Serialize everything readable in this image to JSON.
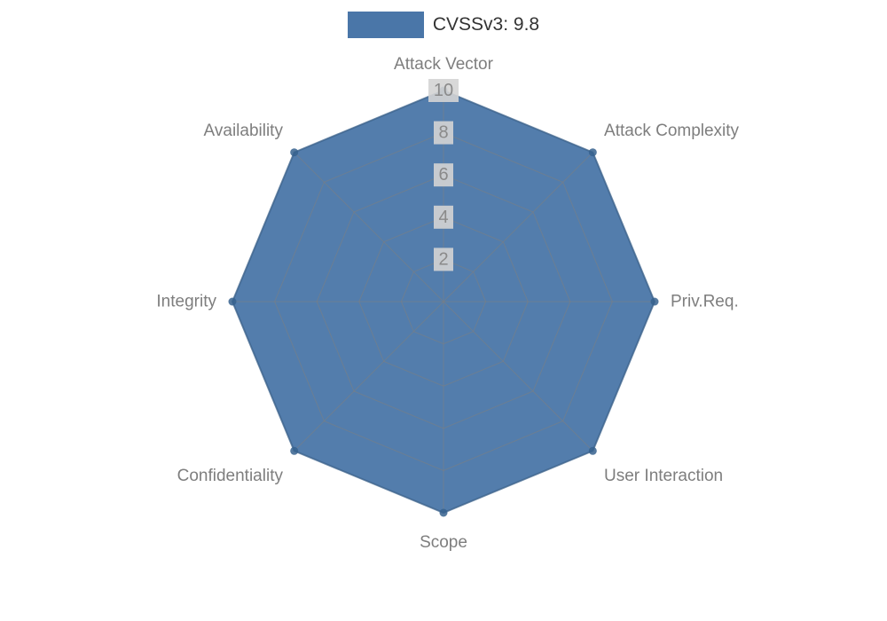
{
  "legend": {
    "label": "CVSSv3: 9.8"
  },
  "chart_data": {
    "type": "radar",
    "title": "CVSSv3: 9.8",
    "categories": [
      "Attack Vector",
      "Attack Complexity",
      "Priv.Req.",
      "User Interaction",
      "Scope",
      "Confidentiality",
      "Integrity",
      "Availability"
    ],
    "series": [
      {
        "name": "CVSSv3: 9.8",
        "values": [
          10,
          10,
          10,
          10,
          10,
          10,
          10,
          10
        ],
        "color": "#4a76a8",
        "outline_color": "#36618e"
      }
    ],
    "ticks": [
      2,
      4,
      6,
      8,
      10
    ],
    "rmax": 10,
    "grid": true,
    "grid_color": "#7f7f7f",
    "tick_label_color": "#8a8a8a",
    "tick_label_bg": "#d4d4d4",
    "axis_label_color": "#7e7e7e",
    "legend_position": "top"
  }
}
